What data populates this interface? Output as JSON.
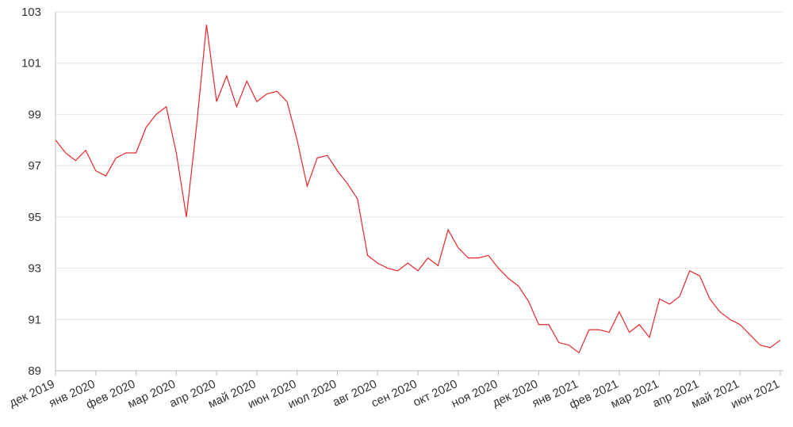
{
  "chart_data": {
    "type": "line",
    "x": [
      0,
      1,
      2,
      3,
      4,
      5,
      6,
      7,
      8,
      9,
      10,
      11,
      12,
      13,
      14,
      15,
      16,
      17,
      18,
      19,
      20,
      21,
      22,
      23,
      24,
      25,
      26,
      27,
      28,
      29,
      30,
      31,
      32,
      33,
      34,
      35,
      36,
      37,
      38,
      39,
      40,
      41,
      42,
      43,
      44,
      45,
      46,
      47,
      48,
      49,
      50,
      51,
      52,
      53,
      54,
      55,
      56,
      57,
      58,
      59,
      60,
      61,
      62,
      63,
      64,
      65,
      66,
      67,
      68,
      69,
      70,
      71,
      72
    ],
    "series": [
      {
        "color": "#e8262a",
        "values": [
          98.0,
          97.5,
          97.2,
          97.6,
          96.8,
          96.6,
          97.3,
          97.5,
          97.5,
          98.5,
          99.0,
          99.3,
          97.5,
          95.0,
          98.5,
          102.5,
          99.5,
          100.5,
          99.3,
          100.3,
          99.5,
          99.8,
          99.9,
          99.5,
          98.0,
          96.2,
          97.3,
          97.4,
          96.8,
          96.3,
          95.7,
          93.5,
          93.2,
          93.0,
          92.9,
          93.2,
          92.9,
          93.4,
          93.1,
          94.5,
          93.8,
          93.4,
          93.4,
          93.5,
          93.0,
          92.6,
          92.3,
          91.7,
          90.8,
          90.8,
          90.1,
          90.0,
          89.7,
          90.6,
          90.6,
          90.5,
          91.3,
          90.5,
          90.8,
          90.3,
          91.8,
          91.6,
          91.9,
          92.9,
          92.7,
          91.8,
          91.3,
          91.0,
          90.8,
          90.4,
          90.0,
          89.9,
          90.2
        ]
      }
    ],
    "xlim": [
      0,
      72
    ],
    "xticks": [
      {
        "value": 0,
        "label": "дек 2019"
      },
      {
        "value": 4,
        "label": "янв 2020"
      },
      {
        "value": 8,
        "label": "фев 2020"
      },
      {
        "value": 12,
        "label": "мар 2020"
      },
      {
        "value": 16,
        "label": "апр 2020"
      },
      {
        "value": 20,
        "label": "май 2020"
      },
      {
        "value": 24,
        "label": "июн 2020"
      },
      {
        "value": 28,
        "label": "июл 2020"
      },
      {
        "value": 32,
        "label": "авг 2020"
      },
      {
        "value": 36,
        "label": "сен 2020"
      },
      {
        "value": 40,
        "label": "окт 2020"
      },
      {
        "value": 44,
        "label": "ноя 2020"
      },
      {
        "value": 48,
        "label": "дек 2020"
      },
      {
        "value": 52,
        "label": "янв 2021"
      },
      {
        "value": 56,
        "label": "фев 2021"
      },
      {
        "value": 60,
        "label": "мар 2021"
      },
      {
        "value": 64,
        "label": "апр 2021"
      },
      {
        "value": 68,
        "label": "май 2021"
      },
      {
        "value": 72,
        "label": "июн 2021"
      }
    ],
    "ylim": [
      89,
      103
    ],
    "yticks": [
      89,
      91,
      93,
      95,
      97,
      99,
      101,
      103
    ],
    "grid": true
  }
}
